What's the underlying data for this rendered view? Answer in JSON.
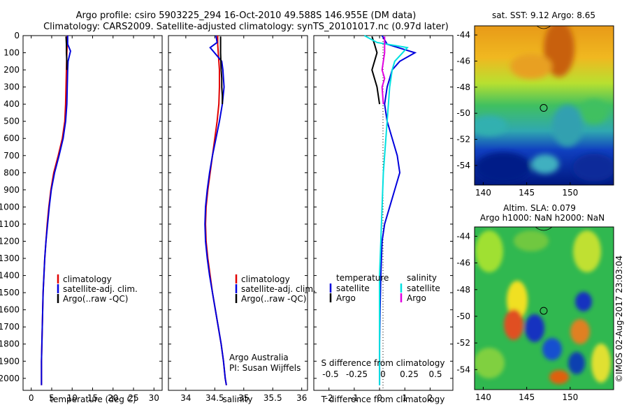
{
  "header": {
    "line1": "Argo profile: csiro 5903225_294 16-Oct-2010 49.588S 146.955E (DM data)",
    "line2": "Climatology: CARS2009. Satellite-adjusted climatology: synTS_20101017.nc (0.97d later)"
  },
  "side_stamp": "©IMOS 02-Aug-2017 23:03:04",
  "colors": {
    "climatology": "#e00000",
    "satellite": "#0000dd",
    "argo": "#000000",
    "sal_satellite": "#00e0e0",
    "sal_argo": "#e000e0"
  },
  "chart_data": [
    {
      "type": "line",
      "name": "temperature-profile",
      "xlabel": "temperature (deg C)",
      "xlim": [
        -2,
        32
      ],
      "ylim": [
        2070,
        0
      ],
      "x_ticks": [
        0,
        5,
        10,
        15,
        20,
        25,
        30
      ],
      "y_ticks": [
        0,
        100,
        200,
        300,
        400,
        500,
        600,
        700,
        800,
        900,
        1000,
        1100,
        1200,
        1300,
        1400,
        1500,
        1600,
        1700,
        1800,
        1900,
        2000
      ],
      "legend": [
        "climatology",
        "satellite-adj. clim.",
        "Argo(..raw -QC)"
      ],
      "series": [
        {
          "name": "climatology",
          "color": "#e00000",
          "x": [
            8.8,
            8.8,
            8.7,
            8.6,
            8.5,
            8.4,
            8.2,
            7.6,
            6.6,
            5.5,
            4.8,
            4.3,
            3.9,
            3.6,
            3.3,
            3.1,
            2.9,
            2.8,
            2.7,
            2.6,
            2.5,
            2.5
          ],
          "y": [
            0,
            50,
            100,
            200,
            300,
            400,
            500,
            600,
            700,
            800,
            900,
            1000,
            1100,
            1200,
            1300,
            1400,
            1500,
            1600,
            1700,
            1800,
            1900,
            2040
          ]
        },
        {
          "name": "satellite-adj. clim.",
          "color": "#0000dd",
          "x": [
            8.9,
            8.9,
            9.6,
            9.0,
            8.9,
            8.8,
            8.7,
            8.4,
            7.8,
            6.8,
            5.7,
            4.9,
            4.4,
            4.0,
            3.6,
            3.3,
            3.1,
            2.9,
            2.8,
            2.7,
            2.6,
            2.5,
            2.5
          ],
          "y": [
            0,
            50,
            90,
            150,
            200,
            300,
            400,
            500,
            600,
            700,
            800,
            900,
            1000,
            1100,
            1200,
            1300,
            1400,
            1500,
            1600,
            1700,
            1800,
            1900,
            2040
          ]
        },
        {
          "name": "Argo(..raw -QC)",
          "color": "#000000",
          "x": [
            8.5,
            8.6,
            8.6,
            8.7,
            8.7
          ],
          "y": [
            5,
            50,
            100,
            150,
            200
          ]
        }
      ]
    },
    {
      "type": "line",
      "name": "salinity-profile",
      "xlabel": "salinity",
      "xlim": [
        33.7,
        36.1
      ],
      "ylim": [
        2070,
        0
      ],
      "x_ticks": [
        34,
        34.5,
        35,
        35.5,
        36
      ],
      "legend": [
        "climatology",
        "satellite-adj. clim.",
        "Argo(..raw -QC)"
      ],
      "credit": [
        "Argo Australia",
        "PI: Susan Wijffels"
      ],
      "series": [
        {
          "name": "climatology",
          "color": "#e00000",
          "x": [
            34.55,
            34.55,
            34.56,
            34.58,
            34.58,
            34.57,
            34.54,
            34.5,
            34.46,
            34.42,
            34.38,
            34.35,
            34.34,
            34.35,
            34.38,
            34.42,
            34.46,
            34.51,
            34.56,
            34.61,
            34.65,
            34.68,
            34.7
          ],
          "y": [
            0,
            50,
            100,
            200,
            300,
            400,
            500,
            600,
            700,
            800,
            900,
            1000,
            1100,
            1200,
            1300,
            1400,
            1500,
            1600,
            1700,
            1800,
            1900,
            2000,
            2040
          ]
        },
        {
          "name": "satellite-adj. clim.",
          "color": "#0000dd",
          "x": [
            34.52,
            34.54,
            34.42,
            34.62,
            34.64,
            34.66,
            34.63,
            34.58,
            34.52,
            34.46,
            34.41,
            34.37,
            34.34,
            34.33,
            34.34,
            34.37,
            34.41,
            34.46,
            34.51,
            34.56,
            34.61,
            34.65,
            34.68,
            34.7
          ],
          "y": [
            0,
            40,
            70,
            150,
            200,
            300,
            400,
            500,
            600,
            700,
            800,
            900,
            1000,
            1100,
            1200,
            1300,
            1400,
            1500,
            1600,
            1700,
            1800,
            1900,
            2000,
            2040
          ]
        },
        {
          "name": "Argo(..raw -QC)",
          "color": "#000000",
          "x": [
            34.6,
            34.6,
            34.6,
            34.61,
            34.62,
            34.62,
            34.63,
            34.63
          ],
          "y": [
            5,
            50,
            100,
            200,
            250,
            300,
            350,
            400
          ]
        }
      ]
    },
    {
      "type": "line",
      "name": "difference-profile",
      "xlabel": "T difference from climatology",
      "xlabel_top": "S difference from climatology",
      "xlim": [
        -2.6,
        2.9
      ],
      "ylim": [
        2070,
        0
      ],
      "x_ticks": [
        -2,
        -1,
        0,
        1,
        2
      ],
      "x_tick_labels": [
        "-2",
        "-1",
        "0",
        "1",
        "2"
      ],
      "s_ticks": [
        -0.5,
        -0.25,
        0,
        0.25,
        0.5
      ],
      "s_tick_labels": [
        "-0.5",
        "-0.25",
        "0",
        "0.25",
        "0.5"
      ],
      "legend_groups": [
        "temperature",
        "salinity"
      ],
      "legend_items": [
        "satellite",
        "Argo",
        "satellite",
        "Argo"
      ],
      "series": [
        {
          "name": "satellite",
          "group": "temperature",
          "color": "#0000dd",
          "x": [
            0.1,
            0.3,
            1.4,
            0.8,
            0.5,
            0.3,
            0.2,
            0.3,
            0.5,
            0.7,
            0.8,
            0.6,
            0.4,
            0.2,
            0.1,
            0.05,
            0.02,
            0.0,
            0.0,
            0.0
          ],
          "y": [
            0,
            50,
            100,
            150,
            200,
            300,
            400,
            500,
            600,
            700,
            800,
            900,
            1000,
            1100,
            1200,
            1400,
            1600,
            1800,
            1900,
            2040
          ]
        },
        {
          "name": "Argo",
          "group": "temperature",
          "color": "#000000",
          "x": [
            -0.3,
            -0.2,
            -0.1,
            -0.2,
            -0.3,
            -0.1,
            0.0
          ],
          "y": [
            5,
            50,
            100,
            150,
            200,
            300,
            400
          ]
        },
        {
          "name": "satellite",
          "group": "salinity",
          "color": "#00e0e0",
          "x": [
            -0.6,
            -0.1,
            1.1,
            0.6,
            0.5,
            0.4,
            0.35,
            0.3,
            0.25,
            0.2,
            0.15,
            0.1,
            0.05,
            0.0,
            0.0,
            0.0
          ],
          "y": [
            0,
            40,
            70,
            150,
            200,
            300,
            400,
            500,
            600,
            700,
            800,
            1000,
            1200,
            1400,
            1700,
            2040
          ]
        },
        {
          "name": "Argo",
          "group": "salinity",
          "color": "#e000e0",
          "x": [
            0.2,
            0.2,
            0.2,
            0.1,
            0.2,
            0.1,
            0.15
          ],
          "y": [
            5,
            50,
            100,
            200,
            250,
            300,
            400
          ]
        }
      ]
    },
    {
      "type": "heatmap",
      "name": "sst-map",
      "title": "sat. SST: 9.12 Argo: 8.65",
      "xlim": [
        139,
        155
      ],
      "ylim": [
        -55.5,
        -43.3
      ],
      "x_ticks": [
        140,
        145,
        150
      ],
      "y_ticks": [
        -44,
        -46,
        -48,
        -50,
        -52,
        -54
      ],
      "marker": {
        "lon": 146.955,
        "lat": -49.588
      }
    },
    {
      "type": "heatmap",
      "name": "sla-map",
      "title": "Altim. SLA: 0.079",
      "subtitle": "Argo h1000: NaN h2000: NaN",
      "xlim": [
        139,
        155
      ],
      "ylim": [
        -55.5,
        -43.3
      ],
      "x_ticks": [
        140,
        145,
        150
      ],
      "y_ticks": [
        -44,
        -46,
        -48,
        -50,
        -52,
        -54
      ],
      "marker": {
        "lon": 146.955,
        "lat": -49.588
      }
    }
  ]
}
